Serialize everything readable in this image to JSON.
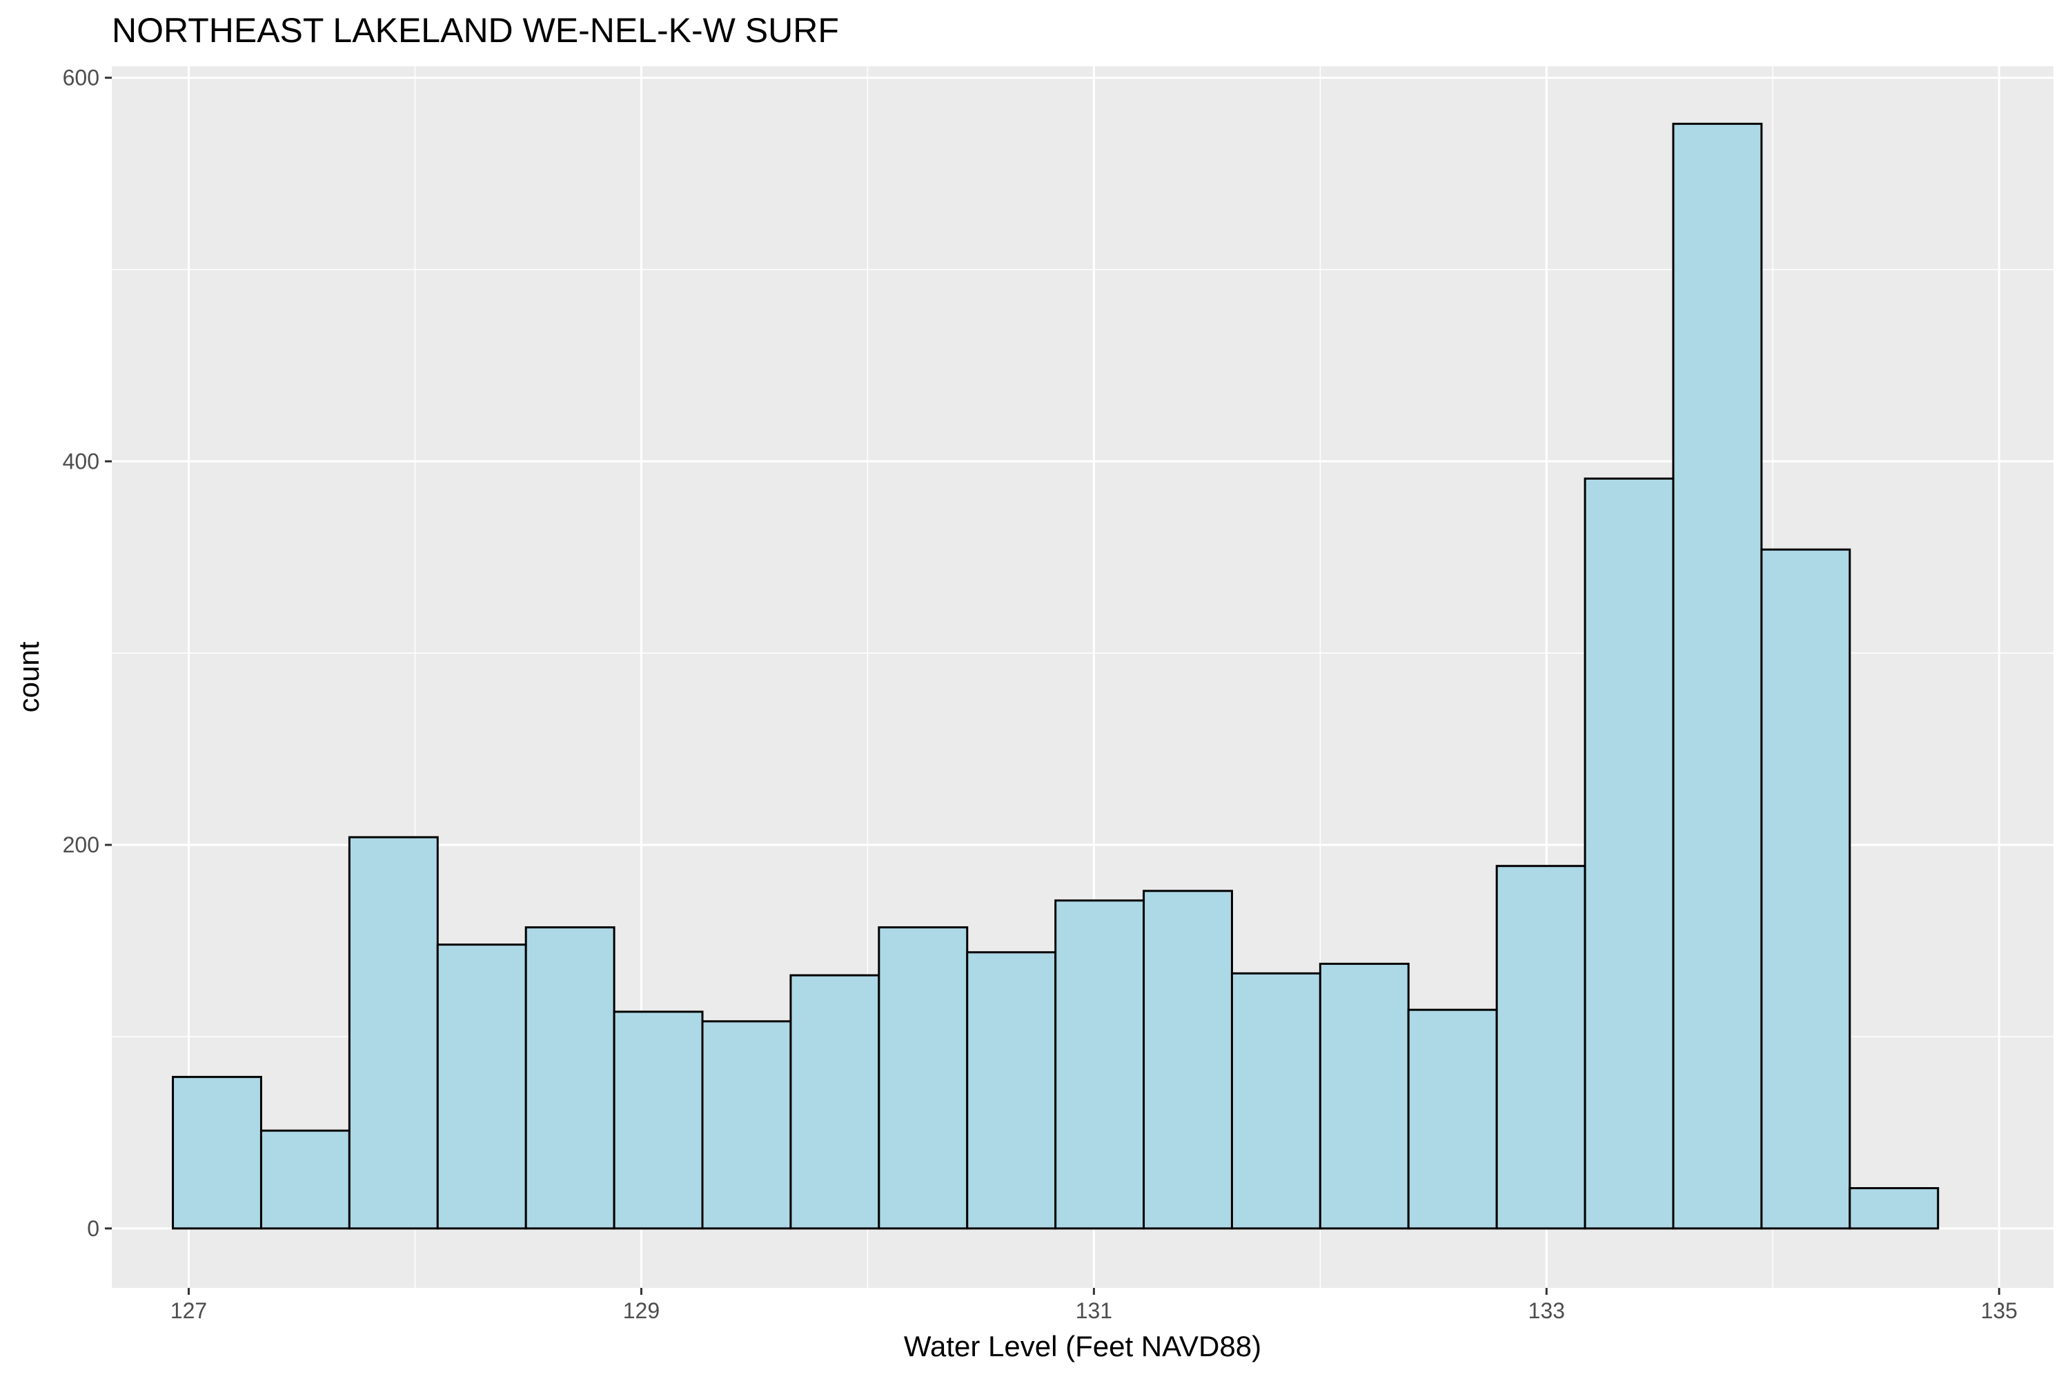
{
  "chart_data": {
    "type": "bar",
    "title": "NORTHEAST LAKELAND WE-NEL-K-W SURF",
    "xlabel": "Water Level (Feet NAVD88)",
    "ylabel": "count",
    "xlim": [
      126.66,
      135.24
    ],
    "ylim": [
      -31,
      606
    ],
    "x_ticks": [
      127,
      129,
      131,
      133,
      135
    ],
    "y_ticks": [
      0,
      200,
      400,
      600
    ],
    "x_tick_labels": [
      "127",
      "129",
      "131",
      "133",
      "135"
    ],
    "y_tick_labels": [
      "0",
      "200",
      "400",
      "600"
    ],
    "grid": true,
    "bin_width": 0.39,
    "bins": [
      {
        "x0": 126.93,
        "x1": 127.32,
        "count": 79
      },
      {
        "x0": 127.32,
        "x1": 127.71,
        "count": 51
      },
      {
        "x0": 127.71,
        "x1": 128.1,
        "count": 204
      },
      {
        "x0": 128.1,
        "x1": 128.49,
        "count": 148
      },
      {
        "x0": 128.49,
        "x1": 128.88,
        "count": 157
      },
      {
        "x0": 128.88,
        "x1": 129.27,
        "count": 113
      },
      {
        "x0": 129.27,
        "x1": 129.66,
        "count": 108
      },
      {
        "x0": 129.66,
        "x1": 130.05,
        "count": 132
      },
      {
        "x0": 130.05,
        "x1": 130.44,
        "count": 157
      },
      {
        "x0": 130.44,
        "x1": 130.83,
        "count": 144
      },
      {
        "x0": 130.83,
        "x1": 131.22,
        "count": 171
      },
      {
        "x0": 131.22,
        "x1": 131.61,
        "count": 176
      },
      {
        "x0": 131.61,
        "x1": 132.0,
        "count": 133
      },
      {
        "x0": 132.0,
        "x1": 132.39,
        "count": 138
      },
      {
        "x0": 132.39,
        "x1": 132.78,
        "count": 114
      },
      {
        "x0": 132.78,
        "x1": 133.17,
        "count": 189
      },
      {
        "x0": 133.17,
        "x1": 133.56,
        "count": 391
      },
      {
        "x0": 133.56,
        "x1": 133.95,
        "count": 576
      },
      {
        "x0": 133.95,
        "x1": 134.34,
        "count": 354
      },
      {
        "x0": 134.34,
        "x1": 134.73,
        "count": 21
      }
    ],
    "colors": {
      "panel": "#ebebeb",
      "grid_major": "#ffffff",
      "bar_fill": "#add8e6",
      "bar_stroke": "#000000",
      "tick": "#333333"
    }
  }
}
